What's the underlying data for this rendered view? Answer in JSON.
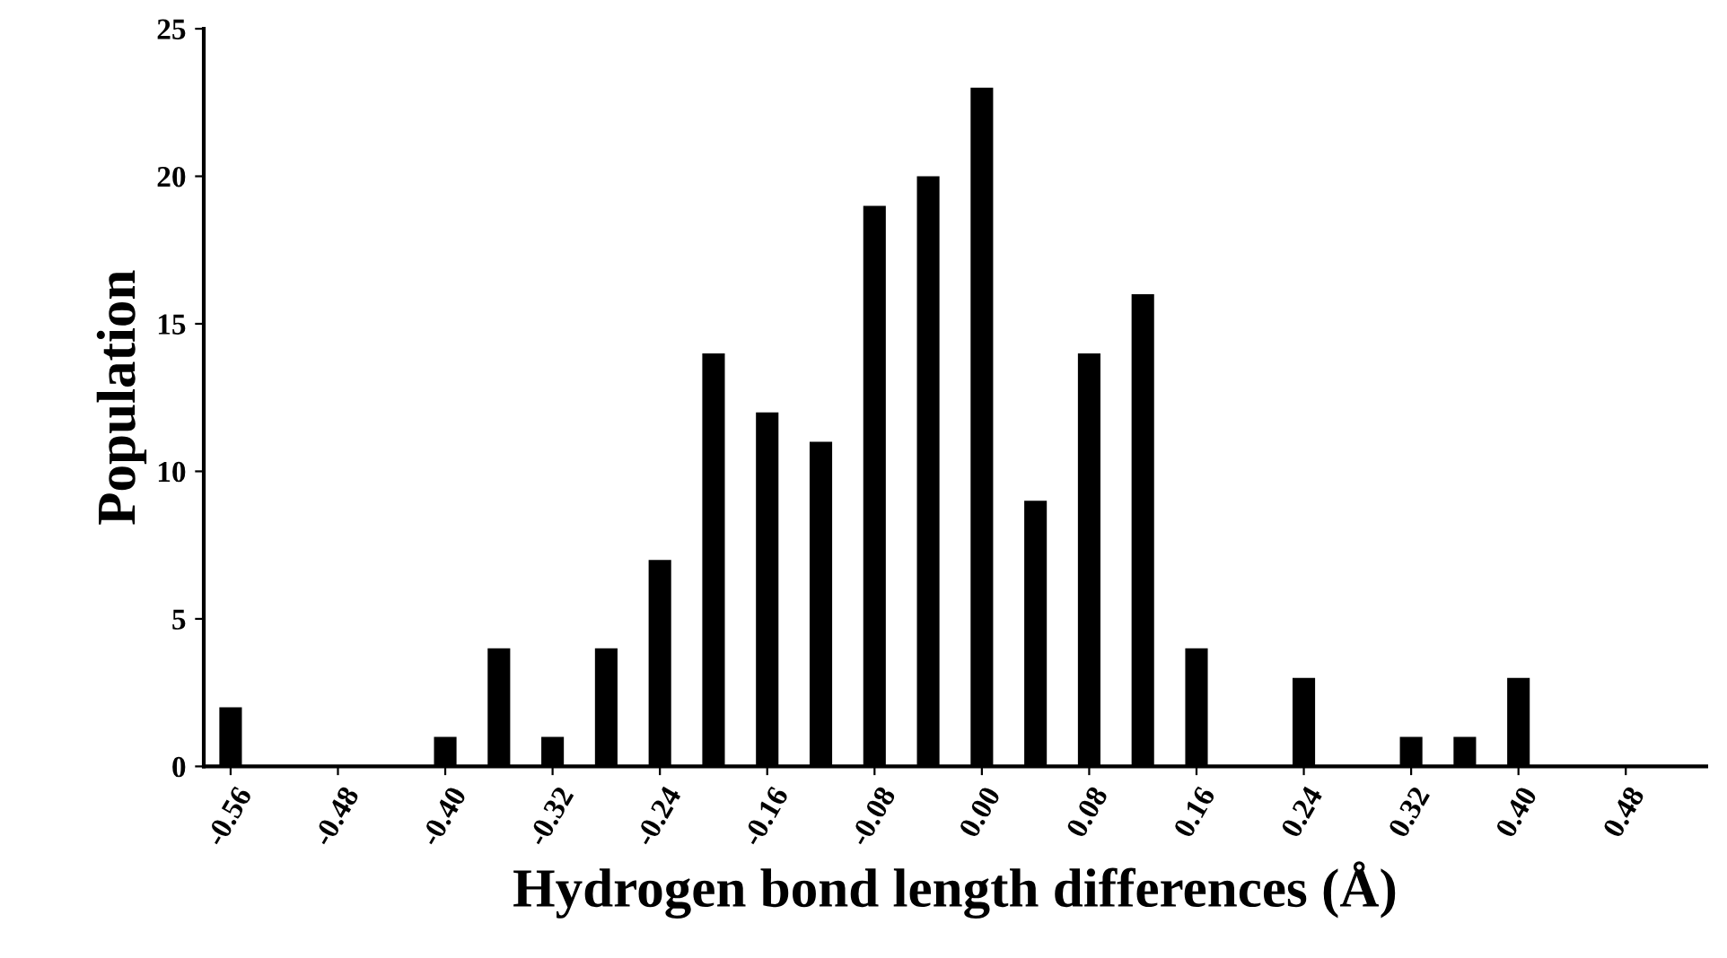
{
  "chart_data": {
    "type": "bar",
    "xlabel": "Hydrogen bond length differences (Å)",
    "ylabel": "Population",
    "categories": [
      "-0.56",
      null,
      "-0.48",
      null,
      "-0.40",
      null,
      "-0.32",
      null,
      "-0.24",
      null,
      "-0.16",
      null,
      "-0.08",
      null,
      "0.00",
      null,
      "0.08",
      null,
      "0.16",
      null,
      "0.24",
      null,
      "0.32",
      null,
      "0.40",
      null,
      "0.48",
      null
    ],
    "values": [
      2,
      0,
      0,
      0,
      1,
      4,
      1,
      4,
      7,
      14,
      12,
      11,
      19,
      20,
      23,
      9,
      14,
      16,
      4,
      0,
      3,
      0,
      1,
      1,
      3,
      0,
      0,
      0
    ],
    "color": "#000000",
    "ylim": [
      0,
      25
    ],
    "yticks": [
      0,
      5,
      10,
      15,
      20,
      25
    ],
    "grid": false,
    "legend": false
  }
}
